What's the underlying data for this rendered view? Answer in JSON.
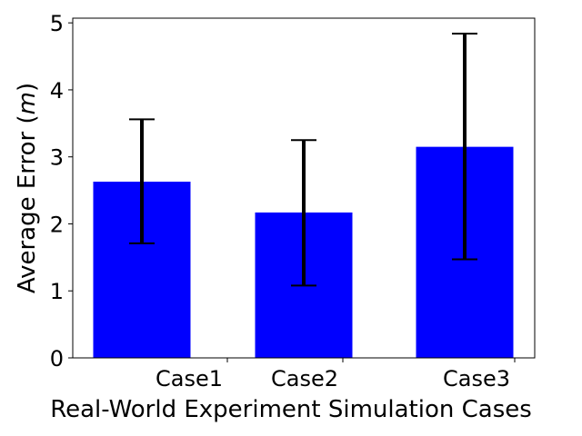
{
  "chart_data": {
    "type": "bar",
    "title": "",
    "xlabel": "Real-World Experiment Simulation Cases",
    "ylabel_prefix": "Average Error (",
    "ylabel_unit": "m",
    "ylabel_suffix": ")",
    "categories": [
      "Case1",
      "Case2",
      "Case3"
    ],
    "values": [
      2.63,
      2.17,
      3.15
    ],
    "error_low": [
      1.71,
      1.08,
      1.47
    ],
    "error_high": [
      3.56,
      3.25,
      4.84
    ],
    "ylim": [
      0,
      5.07
    ],
    "yticks": [
      0,
      1,
      2,
      3,
      4,
      5
    ],
    "bar_color": "#0000ff",
    "error_color": "#000000",
    "grid": false,
    "legend": "none"
  }
}
